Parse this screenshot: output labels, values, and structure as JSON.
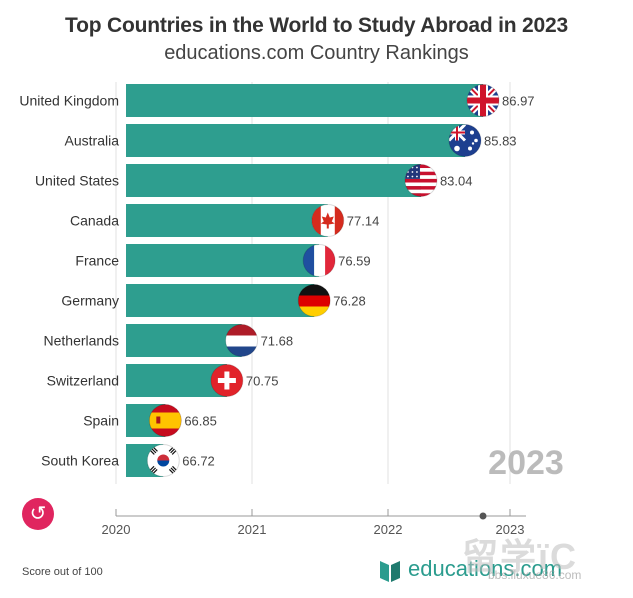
{
  "header": {
    "title": "Top Countries in the World to Study Abroad in 2023",
    "subtitle": "educations.com Country Rankings"
  },
  "chart_data": {
    "type": "bar",
    "orientation": "horizontal",
    "categories": [
      "United Kingdom",
      "Australia",
      "United States",
      "Canada",
      "France",
      "Germany",
      "Netherlands",
      "Switzerland",
      "Spain",
      "South Korea"
    ],
    "values": [
      86.97,
      85.83,
      83.04,
      77.14,
      76.59,
      76.28,
      71.68,
      70.75,
      66.85,
      66.72
    ],
    "value_labels": [
      "86.97",
      "85.83",
      "83.04",
      "77.14",
      "76.59",
      "76.28",
      "71.68",
      "70.75",
      "66.85",
      "66.72"
    ],
    "flags": [
      "uk-flag",
      "australia-flag",
      "usa-flag",
      "canada-flag",
      "france-flag",
      "germany-flag",
      "netherlands-flag",
      "switzerland-flag",
      "spain-flag",
      "south-korea-flag"
    ],
    "xaxis_ticks": [
      "2020",
      "2021",
      "2022",
      "2023"
    ],
    "current_year": "2023",
    "bar_color": "#2e9e8f",
    "footnote": "Score out of 100"
  },
  "controls": {
    "replay_icon": "↺"
  },
  "brand": {
    "name": "educations.com",
    "color": "#2b9c8e"
  },
  "watermark": {
    "main": "留学ïC",
    "sub": "bbs.liuxue86.com"
  }
}
